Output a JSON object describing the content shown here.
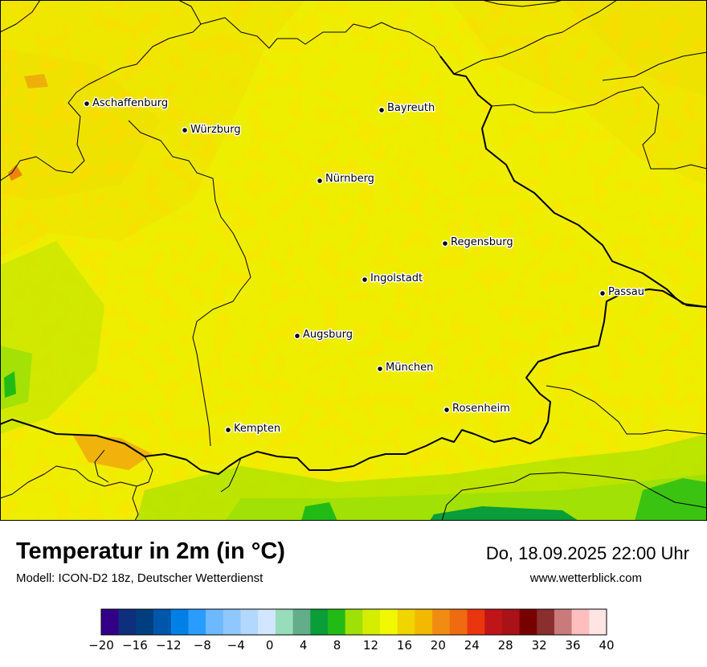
{
  "map": {
    "cities": [
      {
        "name": "Aschaffenburg"
      },
      {
        "name": "Würzburg"
      },
      {
        "name": "Bayreuth"
      },
      {
        "name": "Nürnberg"
      },
      {
        "name": "Regensburg"
      },
      {
        "name": "Ingolstadt"
      },
      {
        "name": "Passau"
      },
      {
        "name": "Augsburg"
      },
      {
        "name": "München"
      },
      {
        "name": "Rosenheim"
      },
      {
        "name": "Kempten"
      }
    ]
  },
  "footer": {
    "title": "Temperatur in 2m (in °C)",
    "model": "Modell: ICON-D2 18z, Deutscher Wetterdienst",
    "datetime": "Do, 18.09.2025 22:00 Uhr",
    "website": "www.wetterblick.com"
  },
  "legend": {
    "colors": [
      "#330088",
      "#0d2f7c",
      "#003f7f",
      "#0056aa",
      "#0080e6",
      "#2b9cff",
      "#6db9ff",
      "#8fc7ff",
      "#b3d8ff",
      "#d2e7ff",
      "#97dcbb",
      "#63ad8b",
      "#0a9d38",
      "#22bb15",
      "#9fe007",
      "#d5ee00",
      "#f0f902",
      "#f0d500",
      "#f2b900",
      "#f08c12",
      "#ef6b10",
      "#e9360e",
      "#bf1418",
      "#a91216",
      "#770000",
      "#8a2e2e",
      "#c97a7a",
      "#ffbebe",
      "#ffe4e4"
    ],
    "ticks": [
      "−20",
      "−16",
      "−12",
      "−8",
      "−4",
      "0",
      "4",
      "8",
      "12",
      "16",
      "20",
      "24",
      "28",
      "32",
      "36",
      "40"
    ]
  }
}
